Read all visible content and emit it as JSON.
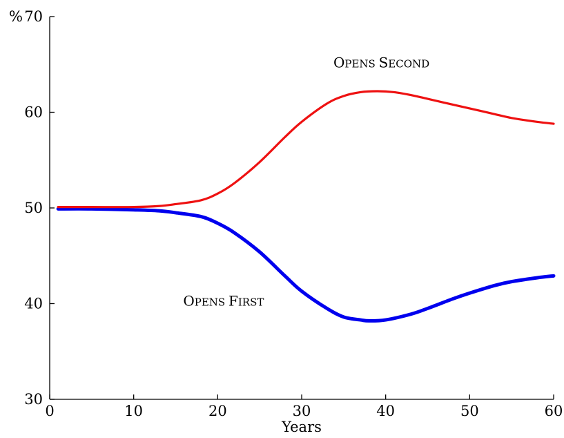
{
  "chart_data": {
    "type": "line",
    "title": "",
    "xlabel": "Years",
    "ylabel": "",
    "y_unit": "%",
    "xlim": [
      0,
      60
    ],
    "ylim": [
      30,
      70
    ],
    "x_ticks": [
      0,
      10,
      20,
      30,
      40,
      50,
      60
    ],
    "y_ticks": [
      30,
      40,
      50,
      60,
      70
    ],
    "grid": false,
    "legend": "none",
    "series": [
      {
        "name": "Opens Second",
        "color": "#ee1111",
        "x": [
          1,
          5,
          10,
          13,
          15,
          18,
          20,
          22,
          25,
          28,
          30,
          33,
          35,
          37,
          39,
          41,
          43,
          45,
          48,
          50,
          53,
          55,
          58,
          60
        ],
        "values": [
          50.1,
          50.1,
          50.1,
          50.2,
          50.4,
          50.8,
          51.5,
          52.6,
          54.8,
          57.4,
          59.0,
          60.9,
          61.7,
          62.1,
          62.2,
          62.1,
          61.8,
          61.4,
          60.8,
          60.4,
          59.8,
          59.4,
          59.0,
          58.8
        ]
      },
      {
        "name": "Opens First",
        "color": "#0000ee",
        "x": [
          1,
          5,
          10,
          13,
          15,
          18,
          20,
          22,
          25,
          28,
          30,
          33,
          35,
          37,
          38,
          40,
          43,
          45,
          48,
          50,
          53,
          55,
          58,
          60
        ],
        "values": [
          49.9,
          49.9,
          49.8,
          49.7,
          49.5,
          49.1,
          48.4,
          47.4,
          45.4,
          42.9,
          41.3,
          39.5,
          38.6,
          38.3,
          38.2,
          38.3,
          38.9,
          39.5,
          40.5,
          41.1,
          41.9,
          42.3,
          42.7,
          42.9
        ]
      }
    ],
    "annotations": [
      {
        "text": "Opens Second",
        "x": 39.5,
        "y": 64.7
      },
      {
        "text": "Opens First",
        "x": 20.7,
        "y": 39.8
      }
    ]
  }
}
